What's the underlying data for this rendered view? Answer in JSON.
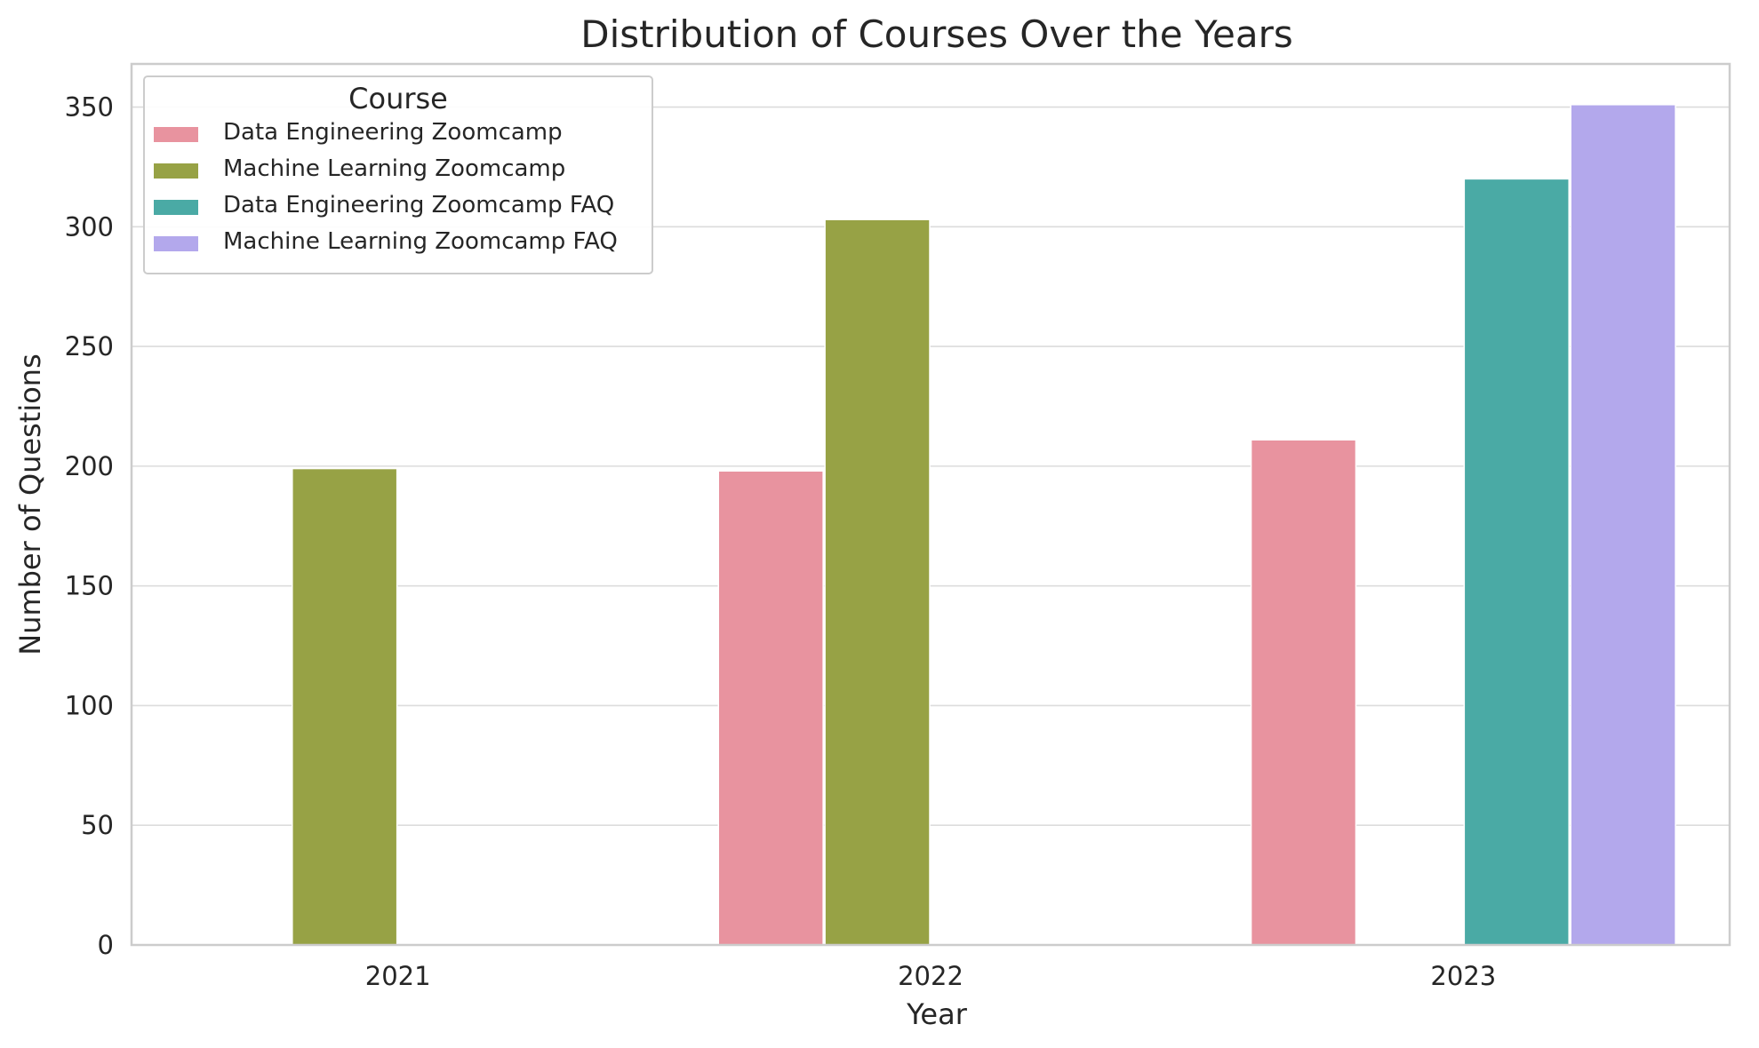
{
  "chart_data": {
    "type": "bar",
    "title": "Distribution of Courses Over the Years",
    "xlabel": "Year",
    "ylabel": "Number of Questions",
    "categories": [
      "2021",
      "2022",
      "2023"
    ],
    "ylim": [
      0,
      368
    ],
    "yticks": [
      0,
      50,
      100,
      150,
      200,
      250,
      300,
      350
    ],
    "grid": true,
    "legend": {
      "title": "Course",
      "placement": "top-left"
    },
    "series": [
      {
        "name": "Data Engineering Zoomcamp",
        "color": "#e8939f",
        "values": [
          null,
          198,
          211
        ]
      },
      {
        "name": "Machine Learning Zoomcamp",
        "color": "#97a245",
        "values": [
          199,
          303,
          null
        ]
      },
      {
        "name": "Data Engineering Zoomcamp FAQ",
        "color": "#4aaaa5",
        "values": [
          null,
          null,
          320
        ]
      },
      {
        "name": "Machine Learning Zoomcamp FAQ",
        "color": "#b3a8ec",
        "values": [
          null,
          null,
          351
        ]
      }
    ]
  }
}
